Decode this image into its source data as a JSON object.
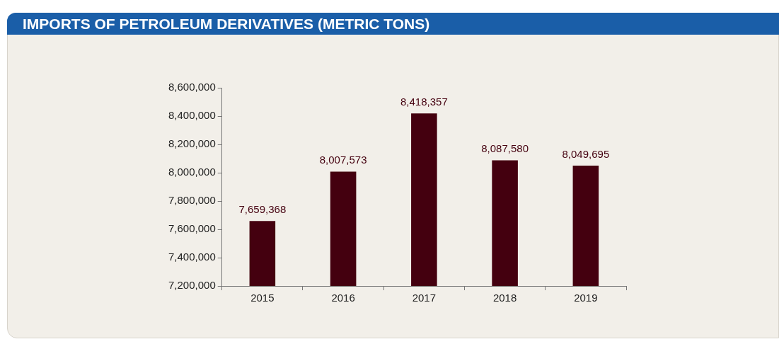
{
  "chart_data": {
    "type": "bar",
    "title": "IMPORTS OF PETROLEUM DERIVATIVES (METRIC TONS)",
    "categories": [
      "2015",
      "2016",
      "2017",
      "2018",
      "2019"
    ],
    "values": [
      7659368,
      8007573,
      8418357,
      8087580,
      8049695
    ],
    "color": "#44000f",
    "ylim": [
      7200000,
      8600000
    ],
    "yticks": [
      {
        "value": 7200000,
        "label": "7,200,000"
      },
      {
        "value": 7400000,
        "label": "7,400,000"
      },
      {
        "value": 7600000,
        "label": "7,600,000"
      },
      {
        "value": 7800000,
        "label": "7,800,000"
      },
      {
        "value": 8000000,
        "label": "8,000,000"
      },
      {
        "value": 8200000,
        "label": "8,200,000"
      },
      {
        "value": 8400000,
        "label": "8,400,000"
      },
      {
        "value": 8600000,
        "label": "8,600,000"
      }
    ],
    "value_labels": [
      "7,659,368",
      "8,007,573",
      "8,418,357",
      "8,087,580",
      "8,049,695"
    ],
    "grid": false,
    "legend": false
  }
}
